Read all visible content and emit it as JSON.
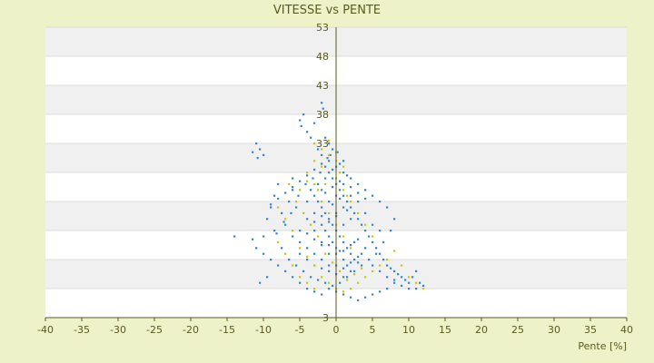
{
  "chart_data": {
    "type": "scatter",
    "title": "VITESSE vs PENTE",
    "xlabel": "Pente [%]",
    "ylabel": "",
    "xlim": [
      -40,
      40
    ],
    "ylim": [
      3,
      53
    ],
    "x_ticks": [
      -40,
      -35,
      -30,
      -25,
      -20,
      -15,
      -10,
      -5,
      0,
      5,
      10,
      15,
      20,
      25,
      30,
      35,
      40
    ],
    "y_ticks": [
      3,
      8,
      13,
      18,
      23,
      28,
      33,
      38,
      43,
      48,
      53
    ],
    "y_tick_labels": [
      "3",
      "",
      "",
      "",
      "",
      "",
      "33",
      "38",
      "43",
      "48",
      "53"
    ],
    "grid": "alternating horizontal bands",
    "legend": "none",
    "colors": {
      "background": "#eef2c8",
      "plot_band_light": "#ffffff",
      "plot_band_dark": "#f0f0f0",
      "axis": "#5a5a1e",
      "series_blue": "#2f86d6",
      "series_yellow": "#c8c800"
    },
    "series": [
      {
        "color": "#2f86d6",
        "values": [
          [
            -11,
            33
          ],
          [
            -10.5,
            32
          ],
          [
            -11.5,
            31.5
          ],
          [
            -10,
            31
          ],
          [
            -10.8,
            30.5
          ],
          [
            -14,
            17
          ],
          [
            -11.5,
            16.5
          ],
          [
            -11,
            15
          ],
          [
            -10,
            17
          ],
          [
            -9.5,
            20
          ],
          [
            -9,
            22
          ],
          [
            -8.5,
            24
          ],
          [
            -8,
            26
          ],
          [
            -7.5,
            21
          ],
          [
            -7,
            19
          ],
          [
            -6.5,
            23
          ],
          [
            -6,
            27
          ],
          [
            -6,
            25
          ],
          [
            -5.5,
            22
          ],
          [
            -5,
            37
          ],
          [
            -4.5,
            38
          ],
          [
            -4.8,
            36
          ],
          [
            -4,
            35
          ],
          [
            -3.5,
            34
          ],
          [
            -3,
            36.5
          ],
          [
            -2.5,
            32
          ],
          [
            -2,
            40
          ],
          [
            -1.8,
            39
          ],
          [
            -1.5,
            34
          ],
          [
            -1,
            33
          ],
          [
            -0.5,
            32
          ],
          [
            -2,
            31
          ],
          [
            -1.5,
            29
          ],
          [
            -1,
            28
          ],
          [
            -0.5,
            27
          ],
          [
            0,
            26
          ],
          [
            0.5,
            25
          ],
          [
            1,
            24
          ],
          [
            1.5,
            23
          ],
          [
            2,
            22
          ],
          [
            2.5,
            21
          ],
          [
            3,
            20
          ],
          [
            3.5,
            19
          ],
          [
            4,
            18
          ],
          [
            4.5,
            17
          ],
          [
            5,
            16
          ],
          [
            5.5,
            15
          ],
          [
            6,
            14
          ],
          [
            6.5,
            13
          ],
          [
            7,
            12
          ],
          [
            7.5,
            11.5
          ],
          [
            8,
            11
          ],
          [
            8.5,
            10.5
          ],
          [
            9,
            10
          ],
          [
            9.5,
            9.5
          ],
          [
            10,
            9
          ],
          [
            10.5,
            10
          ],
          [
            11,
            11
          ],
          [
            11.5,
            9
          ],
          [
            12,
            8.5
          ],
          [
            11,
            8
          ],
          [
            10,
            8
          ],
          [
            9,
            8.5
          ],
          [
            8,
            9
          ],
          [
            7,
            8
          ],
          [
            6,
            7.5
          ],
          [
            5,
            7
          ],
          [
            4,
            6.5
          ],
          [
            3,
            6
          ],
          [
            2,
            6.5
          ],
          [
            1,
            7
          ],
          [
            0,
            7.5
          ],
          [
            -1,
            8
          ],
          [
            -2,
            7
          ],
          [
            -3,
            7.5
          ],
          [
            -4,
            8
          ],
          [
            -5,
            9
          ],
          [
            -6,
            10
          ],
          [
            -7,
            11
          ],
          [
            -8,
            12
          ],
          [
            -9,
            13
          ],
          [
            -10,
            14
          ],
          [
            -10.5,
            9
          ],
          [
            -9.5,
            10
          ],
          [
            -8.5,
            18
          ],
          [
            -7.5,
            15
          ],
          [
            -6.5,
            13
          ],
          [
            -5.5,
            12
          ],
          [
            -4.5,
            11
          ],
          [
            -3.5,
            10
          ],
          [
            -2.5,
            9.5
          ],
          [
            -1.5,
            9
          ],
          [
            -0.5,
            8.5
          ],
          [
            0.5,
            9
          ],
          [
            1.5,
            10
          ],
          [
            2.5,
            11
          ],
          [
            3.5,
            12
          ],
          [
            4.5,
            13
          ],
          [
            5.5,
            14
          ],
          [
            6.5,
            16
          ],
          [
            7.5,
            18
          ],
          [
            8,
            20
          ],
          [
            7,
            22
          ],
          [
            6,
            23
          ],
          [
            5,
            24
          ],
          [
            4,
            25
          ],
          [
            3,
            26
          ],
          [
            2,
            27
          ],
          [
            1,
            28
          ],
          [
            0,
            29
          ],
          [
            -1,
            30
          ],
          [
            -2,
            29.5
          ],
          [
            -3,
            28.5
          ],
          [
            -4,
            27.5
          ],
          [
            -5,
            26.5
          ],
          [
            -6,
            25.5
          ],
          [
            -7,
            24.5
          ],
          [
            -8,
            23.5
          ],
          [
            -9,
            22.5
          ],
          [
            -3,
            24
          ],
          [
            -2.5,
            23
          ],
          [
            -2,
            22
          ],
          [
            -1.5,
            21
          ],
          [
            -1,
            20
          ],
          [
            -0.5,
            19
          ],
          [
            0,
            18
          ],
          [
            0.5,
            17
          ],
          [
            1,
            16
          ],
          [
            1.5,
            15
          ],
          [
            2,
            14
          ],
          [
            2.5,
            13
          ],
          [
            3,
            12.5
          ],
          [
            -3,
            21
          ],
          [
            -2,
            19
          ],
          [
            -1,
            17
          ],
          [
            0,
            15
          ],
          [
            1,
            13
          ],
          [
            2,
            11
          ],
          [
            -4,
            20
          ],
          [
            -3,
            18
          ],
          [
            -2,
            16
          ],
          [
            -1,
            14
          ],
          [
            0,
            12
          ],
          [
            1,
            10
          ],
          [
            -4,
            23
          ],
          [
            -3.5,
            25
          ],
          [
            -2.5,
            26
          ],
          [
            -1.5,
            27
          ],
          [
            -0.5,
            28.5
          ],
          [
            0.5,
            29.5
          ],
          [
            1,
            30
          ],
          [
            -0.8,
            31
          ],
          [
            0.2,
            31.5
          ],
          [
            -1.2,
            30.5
          ],
          [
            -2.2,
            28
          ],
          [
            -3.2,
            27
          ],
          [
            -4.2,
            26
          ],
          [
            -5.2,
            24
          ],
          [
            -6.2,
            21
          ],
          [
            -7.2,
            19.5
          ],
          [
            -8.2,
            17.5
          ],
          [
            4,
            21
          ],
          [
            5,
            19
          ],
          [
            6,
            18
          ],
          [
            3,
            23
          ],
          [
            2,
            24
          ],
          [
            1,
            22
          ],
          [
            0,
            21
          ],
          [
            -1,
            23
          ],
          [
            -2,
            25
          ],
          [
            0,
            24
          ],
          [
            1,
            26
          ],
          [
            2,
            25.5
          ],
          [
            3,
            24.5
          ],
          [
            4,
            23.5
          ],
          [
            -5,
            16
          ],
          [
            -4,
            15
          ],
          [
            -3,
            14
          ],
          [
            -2,
            13
          ],
          [
            -1,
            12
          ],
          [
            -6,
            17
          ],
          [
            -5,
            18
          ],
          [
            -4,
            17.5
          ],
          [
            -3,
            16.5
          ],
          [
            -2,
            15.5
          ],
          [
            -1,
            15.5
          ],
          [
            0,
            14
          ],
          [
            1,
            14.5
          ],
          [
            2,
            15.5
          ],
          [
            3,
            16.5
          ],
          [
            4,
            15
          ],
          [
            5,
            12
          ],
          [
            6,
            11
          ],
          [
            7,
            10
          ],
          [
            8,
            9.5
          ],
          [
            -3,
            12
          ],
          [
            -2,
            11.5
          ],
          [
            -1,
            11
          ],
          [
            0,
            10.5
          ],
          [
            1,
            11.5
          ],
          [
            2,
            12.5
          ],
          [
            3,
            13.5
          ],
          [
            -4,
            13
          ],
          [
            -5,
            14
          ],
          [
            2,
            20
          ],
          [
            1,
            19
          ],
          [
            0,
            20.5
          ],
          [
            -1,
            19.5
          ],
          [
            -2,
            20.5
          ],
          [
            -3,
            19.5
          ],
          [
            -1.5,
            24.5
          ],
          [
            -0.5,
            25.5
          ],
          [
            0.5,
            26.5
          ],
          [
            1.5,
            27.5
          ],
          [
            -0.5,
            22.5
          ],
          [
            0.5,
            23.5
          ],
          [
            1.5,
            21.5
          ],
          [
            -1.5,
            18
          ],
          [
            -0.5,
            16
          ],
          [
            0.5,
            14.5
          ],
          [
            1.5,
            12
          ],
          [
            2.5,
            16
          ],
          [
            3.5,
            14
          ]
        ]
      },
      {
        "color": "#c8c800",
        "values": [
          [
            -3,
            33
          ],
          [
            -2,
            32
          ],
          [
            -1,
            31
          ],
          [
            0,
            30
          ],
          [
            1,
            29
          ],
          [
            -4,
            28
          ],
          [
            -3,
            26
          ],
          [
            -2,
            23
          ],
          [
            -1,
            21
          ],
          [
            0,
            19
          ],
          [
            1,
            17
          ],
          [
            2,
            15
          ],
          [
            -5,
            15
          ],
          [
            -4,
            13.5
          ],
          [
            -3,
            12
          ],
          [
            -2,
            10
          ],
          [
            -1,
            9
          ],
          [
            0,
            8
          ],
          [
            1,
            7.5
          ],
          [
            2,
            8
          ],
          [
            3,
            9
          ],
          [
            4,
            10
          ],
          [
            5,
            11
          ],
          [
            6,
            12
          ],
          [
            7,
            13
          ],
          [
            8,
            14.5
          ],
          [
            9,
            12
          ],
          [
            10,
            10
          ],
          [
            11,
            9
          ],
          [
            12,
            8
          ],
          [
            -6,
            18
          ],
          [
            -7,
            20
          ],
          [
            -8,
            22
          ],
          [
            -5,
            25
          ],
          [
            -4,
            26.5
          ],
          [
            -6,
            12
          ],
          [
            -7,
            14
          ],
          [
            -8,
            16
          ],
          [
            -5,
            10
          ],
          [
            -4,
            9
          ],
          [
            -3,
            8
          ],
          [
            0,
            27
          ],
          [
            1,
            25
          ],
          [
            2,
            23
          ],
          [
            3,
            21
          ],
          [
            4,
            19
          ],
          [
            5,
            17
          ],
          [
            0,
            31.5
          ],
          [
            -1,
            33.5
          ],
          [
            -2,
            29
          ],
          [
            -3,
            30
          ],
          [
            -2.5,
            17
          ],
          [
            -1.5,
            14
          ],
          [
            -0.5,
            12.5
          ],
          [
            0.5,
            11
          ],
          [
            1.5,
            9.5
          ],
          [
            2.5,
            10.5
          ],
          [
            3.5,
            11.5
          ],
          [
            -3.5,
            19
          ],
          [
            -4.5,
            21
          ],
          [
            -5.5,
            23
          ],
          [
            -6.5,
            26
          ],
          [
            -2.5,
            25
          ],
          [
            -1.5,
            26
          ],
          [
            0.5,
            28
          ],
          [
            1.5,
            24
          ]
        ]
      }
    ]
  }
}
